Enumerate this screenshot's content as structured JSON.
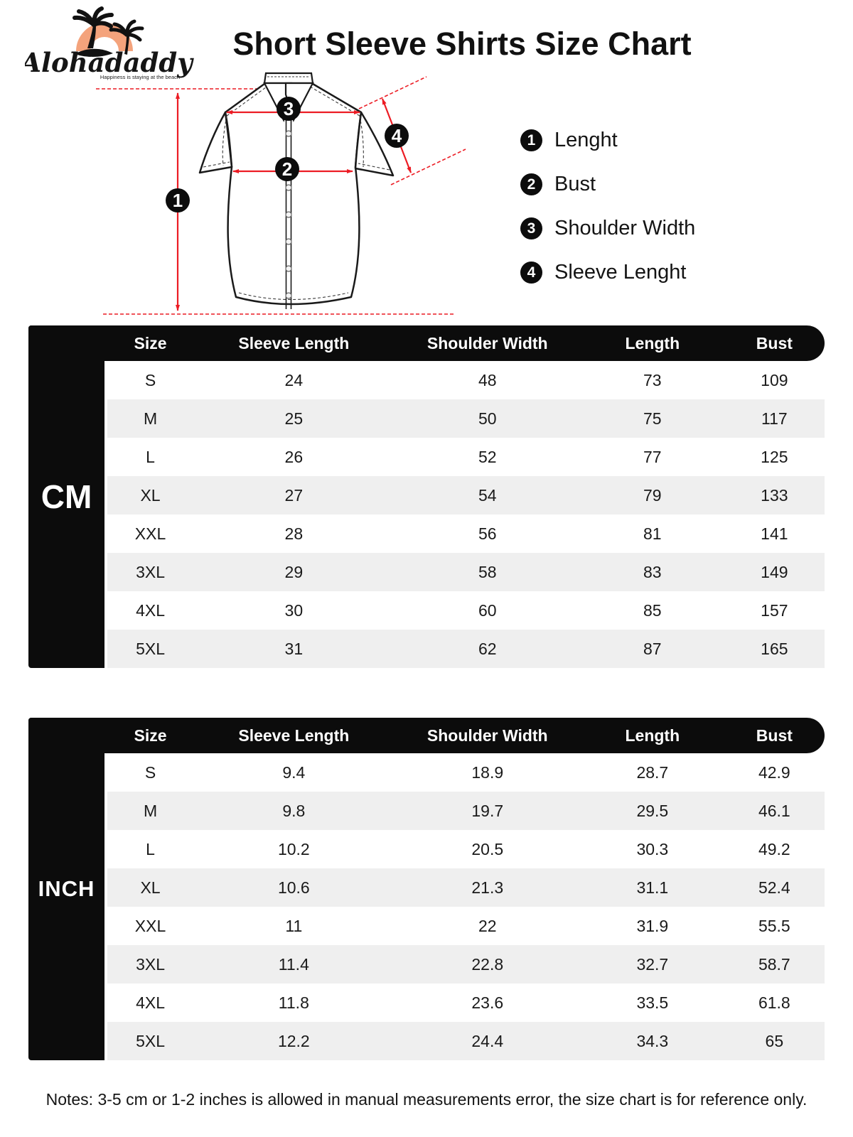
{
  "brand": {
    "name": "Alohadaddy",
    "tagline": "Happiness is staying at the beach"
  },
  "title": "Short Sleeve Shirts Size Chart",
  "legend": [
    {
      "num": "1",
      "label": "Lenght"
    },
    {
      "num": "2",
      "label": "Bust"
    },
    {
      "num": "3",
      "label": "Shoulder Width"
    },
    {
      "num": "4",
      "label": "Sleeve Lenght"
    }
  ],
  "tables": [
    {
      "unit": "CM",
      "columns": [
        "Size",
        "Sleeve Length",
        "Shoulder Width",
        "Length",
        "Bust"
      ],
      "rows": [
        [
          "S",
          "24",
          "48",
          "73",
          "109"
        ],
        [
          "M",
          "25",
          "50",
          "75",
          "117"
        ],
        [
          "L",
          "26",
          "52",
          "77",
          "125"
        ],
        [
          "XL",
          "27",
          "54",
          "79",
          "133"
        ],
        [
          "XXL",
          "28",
          "56",
          "81",
          "141"
        ],
        [
          "3XL",
          "29",
          "58",
          "83",
          "149"
        ],
        [
          "4XL",
          "30",
          "60",
          "85",
          "157"
        ],
        [
          "5XL",
          "31",
          "62",
          "87",
          "165"
        ]
      ]
    },
    {
      "unit": "INCH",
      "columns": [
        "Size",
        "Sleeve Length",
        "Shoulder Width",
        "Length",
        "Bust"
      ],
      "rows": [
        [
          "S",
          "9.4",
          "18.9",
          "28.7",
          "42.9"
        ],
        [
          "M",
          "9.8",
          "19.7",
          "29.5",
          "46.1"
        ],
        [
          "L",
          "10.2",
          "20.5",
          "30.3",
          "49.2"
        ],
        [
          "XL",
          "10.6",
          "21.3",
          "31.1",
          "52.4"
        ],
        [
          "XXL",
          "11",
          "22",
          "31.9",
          "55.5"
        ],
        [
          "3XL",
          "11.4",
          "22.8",
          "32.7",
          "58.7"
        ],
        [
          "4XL",
          "11.8",
          "23.6",
          "33.5",
          "61.8"
        ],
        [
          "5XL",
          "12.2",
          "24.4",
          "34.3",
          "65"
        ]
      ]
    }
  ],
  "notes": "Notes: 3-5 cm or 1-2 inches is allowed in manual measurements error, the size chart is for reference only.",
  "colors": {
    "accent_red": "#ec1c24",
    "black": "#0c0c0c",
    "row_stripe": "#efefef",
    "logo_orange": "#f4a37c"
  }
}
